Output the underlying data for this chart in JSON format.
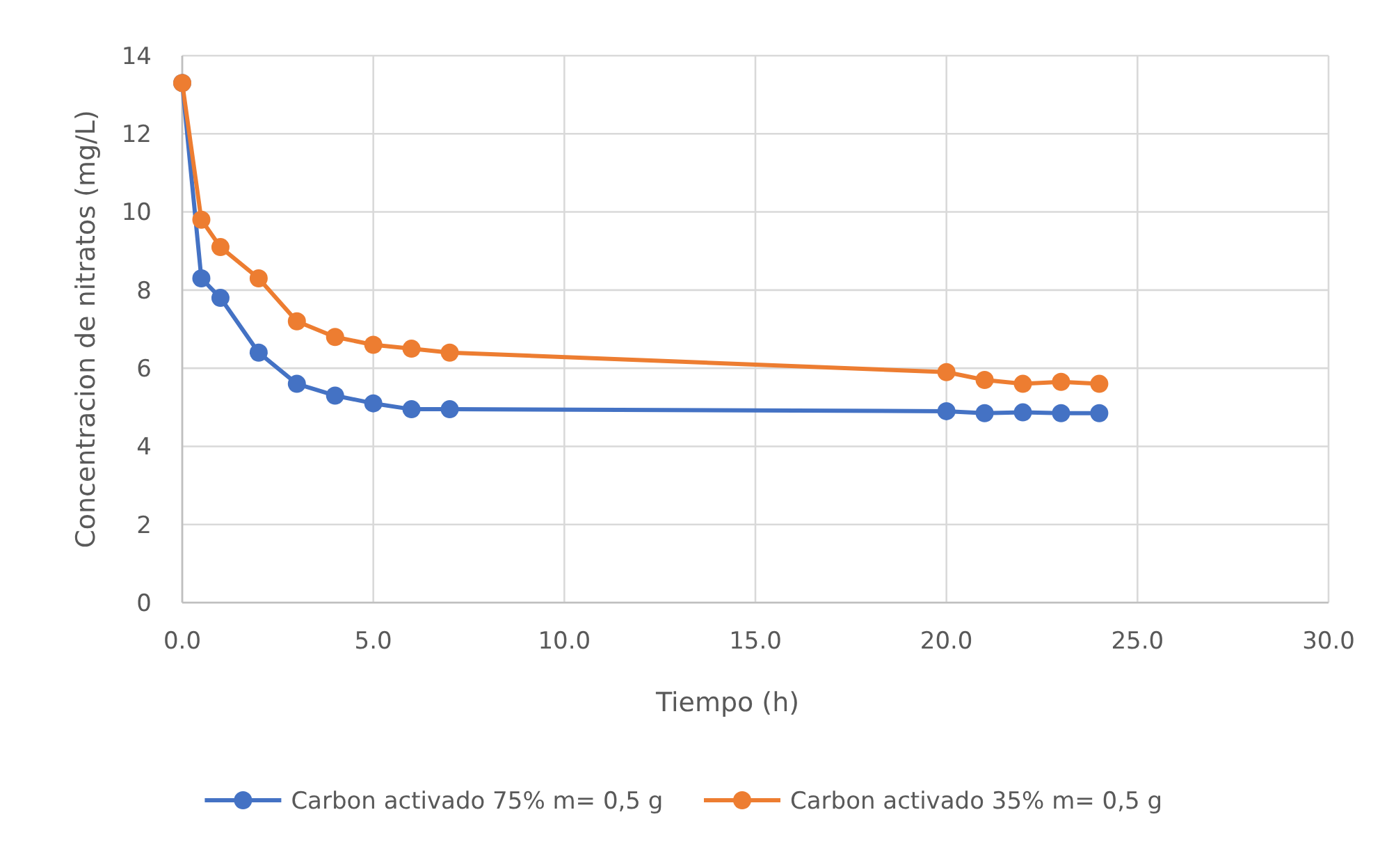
{
  "chart_data": {
    "type": "line",
    "xlabel": "Tiempo (h)",
    "ylabel": "Concentracion de nitratos (mg/L)",
    "x": [
      0,
      0.5,
      1,
      2,
      3,
      4,
      5,
      6,
      7,
      20,
      21,
      22,
      23,
      24
    ],
    "series": [
      {
        "name": "Carbon activado 75% m= 0,5 g",
        "color": "#4472c4",
        "values": [
          13.3,
          8.3,
          7.8,
          6.4,
          5.6,
          5.3,
          5.1,
          4.95,
          4.95,
          4.9,
          4.85,
          4.87,
          4.85,
          4.85
        ]
      },
      {
        "name": "Carbon activado 35% m= 0,5 g",
        "color": "#ed7d31",
        "values": [
          13.3,
          9.8,
          9.1,
          8.3,
          7.2,
          6.8,
          6.6,
          6.5,
          6.4,
          5.9,
          5.7,
          5.6,
          5.65,
          5.6
        ]
      }
    ],
    "xlim": [
      0,
      30
    ],
    "xticks": [
      {
        "value": 0,
        "label": "0.0"
      },
      {
        "value": 5,
        "label": "5.0"
      },
      {
        "value": 10,
        "label": "10.0"
      },
      {
        "value": 15,
        "label": "15.0"
      },
      {
        "value": 20,
        "label": "20.0"
      },
      {
        "value": 25,
        "label": "25.0"
      },
      {
        "value": 30,
        "label": "30.0"
      }
    ],
    "ylim": [
      0,
      14
    ],
    "yticks": [
      0,
      2,
      4,
      6,
      8,
      10,
      12,
      14
    ],
    "grid": true,
    "legend": "bottom",
    "marker": "circle",
    "line_style": "solid"
  }
}
